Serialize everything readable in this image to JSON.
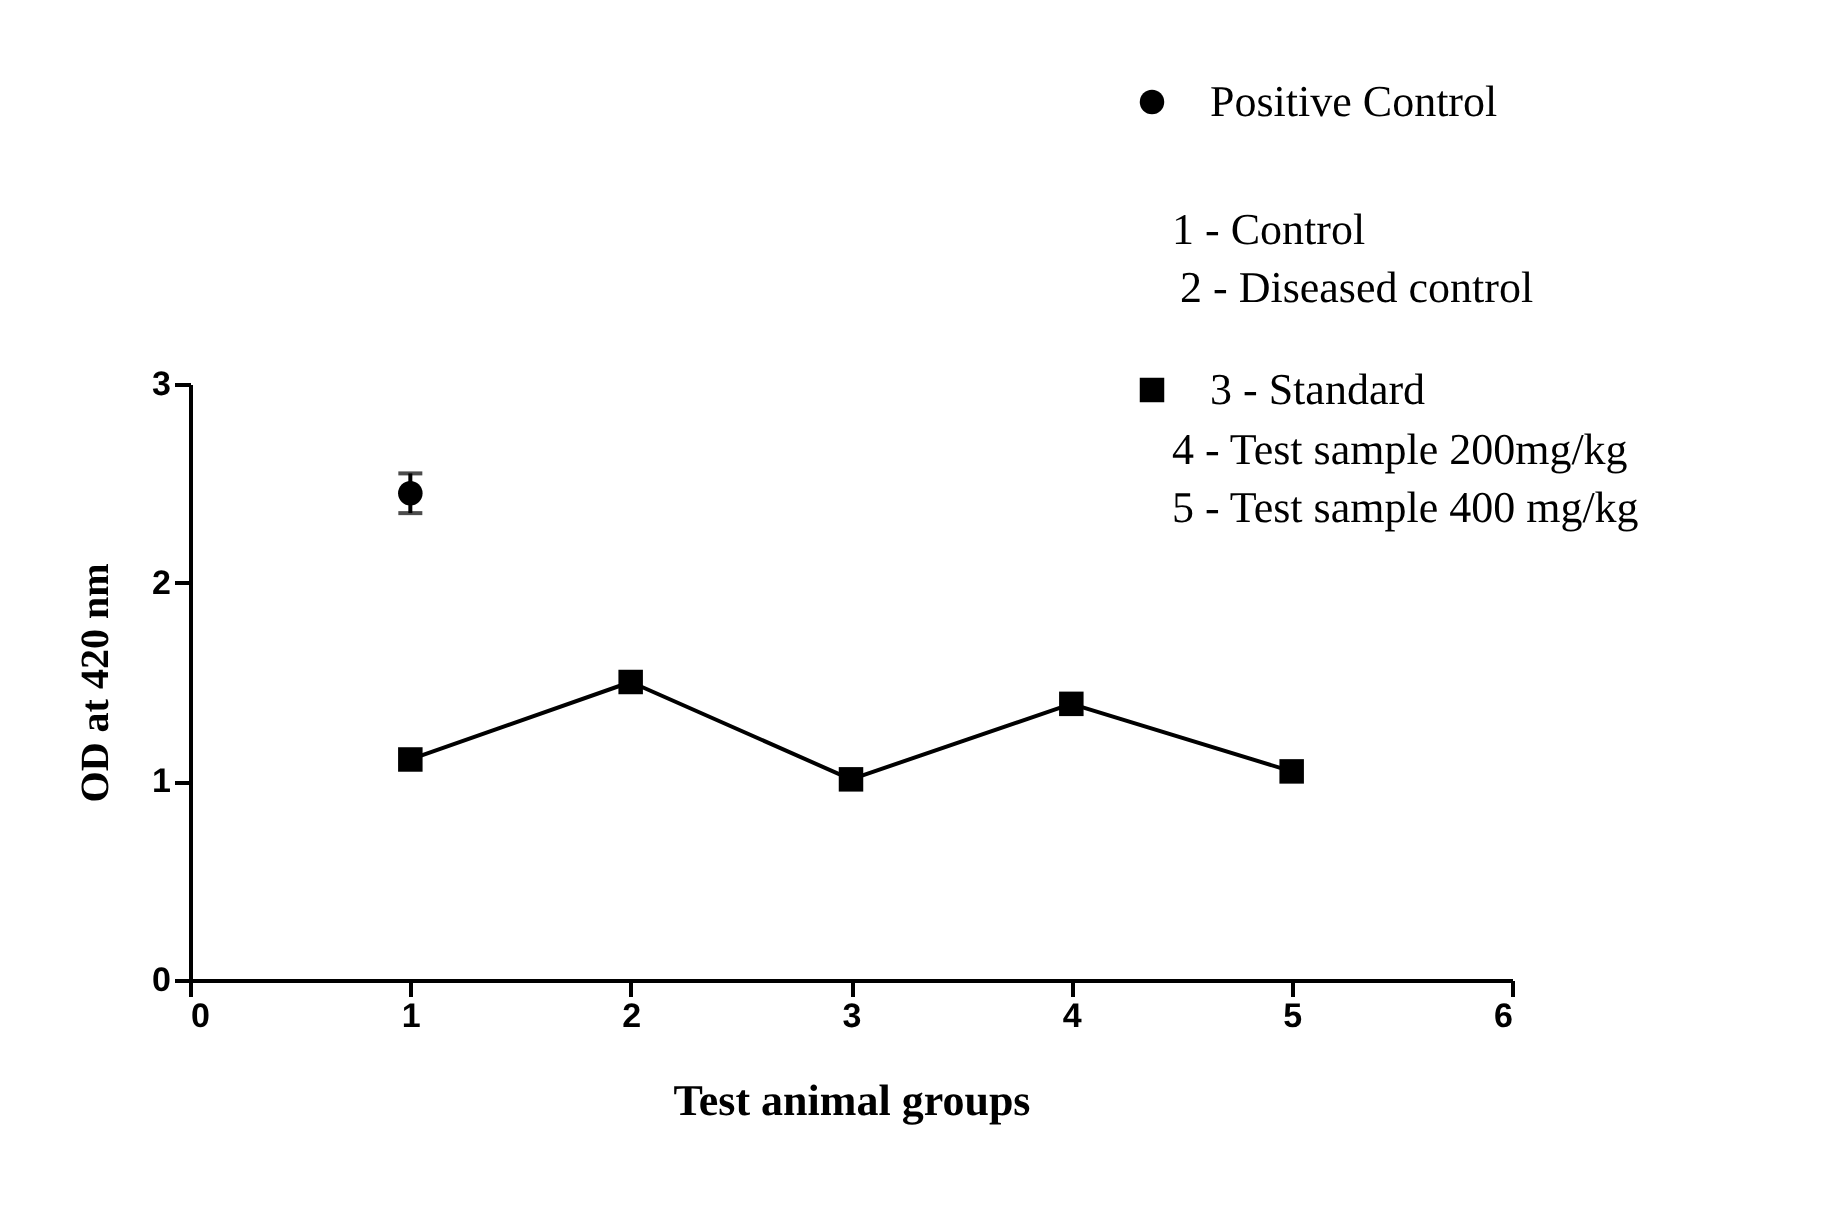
{
  "chart_data": {
    "type": "line",
    "xlabel": "Test animal groups",
    "ylabel": "OD at 420 nm",
    "xlim": [
      0,
      6
    ],
    "xticks": [
      0,
      1,
      2,
      3,
      4,
      5,
      6
    ],
    "ylim": [
      0,
      3
    ],
    "yticks": [
      0,
      1,
      2,
      3
    ],
    "series": [
      {
        "name": "Positive Control",
        "type": "scatter",
        "marker": "circle",
        "color": "#000000",
        "x": [
          1
        ],
        "values": [
          2.45
        ],
        "errors": [
          0.1
        ]
      },
      {
        "name": "3 - Standard",
        "type": "line",
        "marker": "square",
        "line_style": "solid",
        "color": "#000000",
        "x": [
          1,
          2,
          3,
          4,
          5
        ],
        "values": [
          1.11,
          1.5,
          1.01,
          1.39,
          1.05
        ]
      }
    ],
    "annotations": [
      "1 - Control",
      "2 - Diseased control",
      "4 - Test sample 200mg/kg",
      "5 - Test sample 400 mg/kg"
    ],
    "legend": "top right",
    "grid": false
  }
}
